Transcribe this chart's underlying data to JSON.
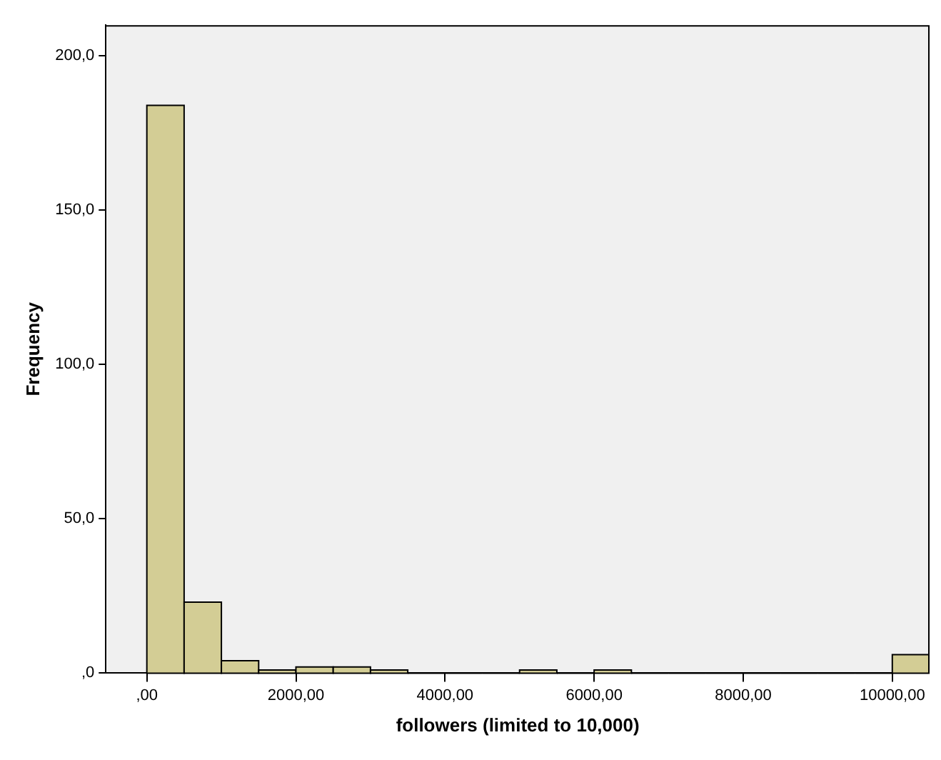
{
  "chart_data": {
    "type": "histogram",
    "xlabel": "followers (limited to 10,000)",
    "ylabel": "Frequency",
    "bins": [
      0,
      500,
      1000,
      1500,
      2000,
      2500,
      3000,
      3500,
      4000,
      4500,
      5000,
      5500,
      6000,
      6500,
      7000,
      7500,
      8000,
      8500,
      9000,
      9500,
      10000,
      10500
    ],
    "values": [
      184,
      23,
      4,
      1,
      2,
      2,
      1,
      0,
      0,
      0,
      1,
      0,
      1,
      0,
      0,
      0,
      0,
      0,
      0,
      0,
      6
    ],
    "color": "#d3cd95",
    "xlim": [
      -550,
      10500
    ],
    "xticks": [
      {
        "value": 0,
        "label": ",00"
      },
      {
        "value": 2000,
        "label": "2000,00"
      },
      {
        "value": 4000,
        "label": "4000,00"
      },
      {
        "value": 6000,
        "label": "6000,00"
      },
      {
        "value": 8000,
        "label": "8000,00"
      },
      {
        "value": 10000,
        "label": "10000,00"
      }
    ],
    "ylim": [
      0,
      210
    ],
    "yticks": [
      {
        "value": 0,
        "label": ",0"
      },
      {
        "value": 50,
        "label": "50,0"
      },
      {
        "value": 100,
        "label": "100,0"
      },
      {
        "value": 150,
        "label": "150,0"
      },
      {
        "value": 200,
        "label": "200,0"
      }
    ],
    "grid": false
  }
}
